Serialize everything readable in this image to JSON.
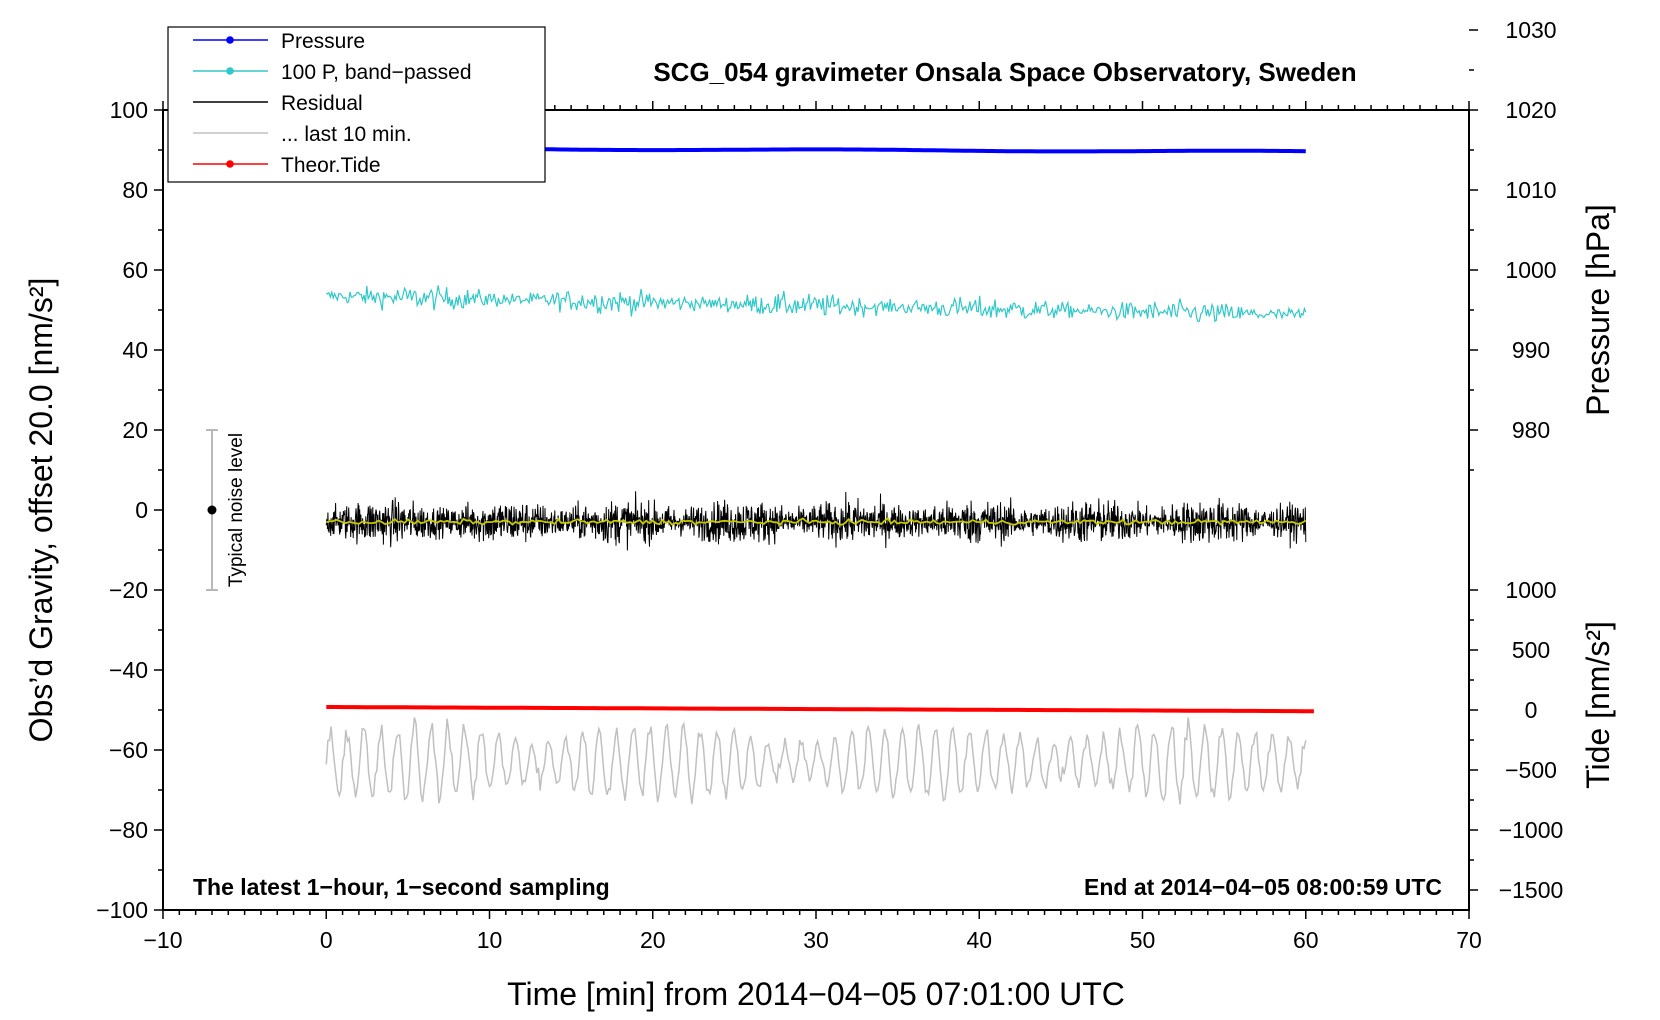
{
  "chart_data": {
    "type": "line",
    "title": "SCG_054 gravimeter Onsala Space Observatory, Sweden",
    "xlabel": "Time [min] from 2014−04−05 07:01:00 UTC",
    "ylabel": "Obs’d Gravity, offset 20.0 [nm/s²]",
    "xlim": [
      -10,
      70
    ],
    "ylim": [
      -100,
      100
    ],
    "x_ticks": [
      -10,
      0,
      10,
      20,
      30,
      40,
      50,
      60,
      70
    ],
    "x_tick_labels": [
      "−10",
      "0",
      "10",
      "20",
      "30",
      "40",
      "50",
      "60",
      "70"
    ],
    "y_ticks": [
      -100,
      -80,
      -60,
      -40,
      -20,
      0,
      20,
      40,
      60,
      80,
      100
    ],
    "y_tick_labels": [
      "−100",
      "−80",
      "−60",
      "−40",
      "−20",
      "0",
      "20",
      "40",
      "60",
      "80",
      "100"
    ],
    "right_axes": [
      {
        "name": "pressure",
        "label": "Pressure [hPa]",
        "ticks": [
          980,
          990,
          1000,
          1010,
          1020,
          1030
        ],
        "tick_labels": [
          "980",
          "990",
          "1000",
          "1010",
          "1020",
          "1030"
        ],
        "maps_to_gravity_at_980": 20,
        "gravity_per_hPa": 2
      },
      {
        "name": "tide",
        "label": "Tide [nm/s²]",
        "ticks": [
          -1500,
          -1000,
          -500,
          0,
          500,
          1000
        ],
        "tick_labels": [
          "−1500",
          "−1000",
          "−500",
          "0",
          "500",
          "1000"
        ],
        "maps_to_gravity_at_0": -50,
        "gravity_per_unit": 0.03
      }
    ],
    "series": [
      {
        "name": "Pressure",
        "color": "#0000ff",
        "style": "line-dot",
        "start": 1015.2,
        "end": 1014.8,
        "unit": "hPa"
      },
      {
        "name": "100 P, band−passed",
        "color": "#30c8c8",
        "style": "line-dot",
        "mean": 50,
        "amplitude": 5
      },
      {
        "name": "Residual",
        "color": "#000000",
        "style": "line",
        "mean": -3,
        "amplitude": 16
      },
      {
        "name": "... last 10 min.",
        "color": "#c0c0c0",
        "style": "line",
        "mean": -63,
        "amplitude": 14
      },
      {
        "name": "Theor.Tide",
        "color": "#ff0000",
        "style": "line-dot",
        "start": 25,
        "end": -10,
        "unit": "nm/s²"
      },
      {
        "name": "Residual running mean",
        "color": "#c8c800",
        "style": "line",
        "mean": -3,
        "amplitude": 1.5,
        "in_legend": false
      }
    ],
    "x_range_data": [
      0,
      60
    ],
    "noise_bar": {
      "label": "Typical noise level",
      "x": -7,
      "center": 0,
      "low": -20,
      "high": 20
    },
    "annotations": {
      "bottom_left": "The latest 1−hour, 1−second sampling",
      "bottom_right": "End at 2014−04−05 08:00:59 UTC"
    },
    "legend_position": "top-left"
  }
}
